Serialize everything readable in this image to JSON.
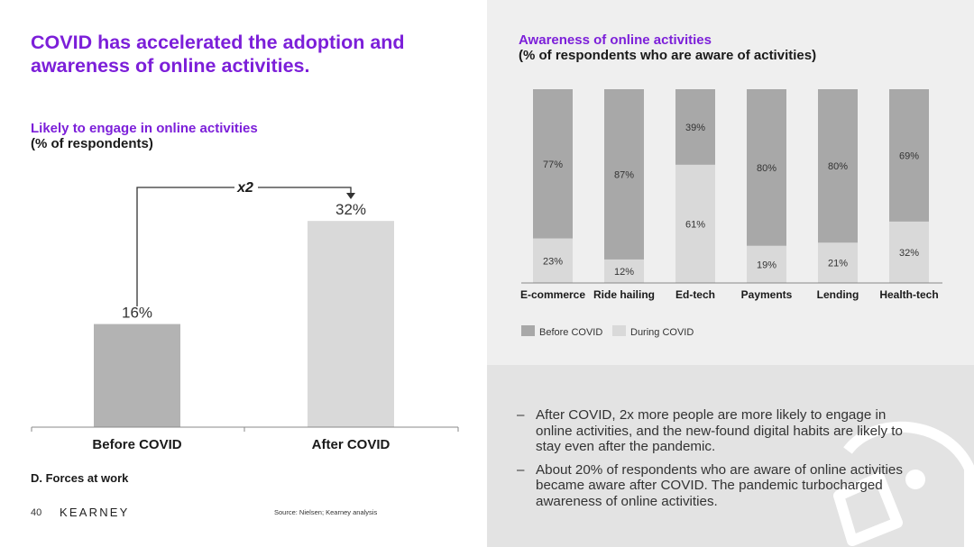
{
  "title": "COVID has accelerated the adoption and awareness of online activities.",
  "left_chart": {
    "subtitle": "Likely to engage in online activities",
    "subtitle2": "(% of respondents)",
    "multiplier": "x2"
  },
  "right_chart": {
    "subtitle": "Awareness of online activities",
    "subtitle2": "(% of respondents who are aware of activities)"
  },
  "chart_data": [
    {
      "type": "bar",
      "title": "Likely to engage in online activities",
      "ylabel": "% of respondents",
      "categories": [
        "Before COVID",
        "After COVID"
      ],
      "values": [
        16,
        32
      ],
      "value_labels": [
        "16%",
        "32%"
      ],
      "annotation": "x2",
      "ylim": [
        0,
        40
      ],
      "colors": [
        "#b3b3b3",
        "#d9d9d9"
      ]
    },
    {
      "type": "bar",
      "stacked": true,
      "title": "Awareness of online activities",
      "ylabel": "% of respondents who are aware of activities",
      "categories": [
        "E-commerce",
        "Ride hailing",
        "Ed-tech",
        "Payments",
        "Lending",
        "Health-tech"
      ],
      "series": [
        {
          "name": "During COVID",
          "values": [
            23,
            12,
            61,
            19,
            21,
            32
          ],
          "labels": [
            "23%",
            "12%",
            "61%",
            "19%",
            "21%",
            "32%"
          ],
          "color": "#d9d9d9"
        },
        {
          "name": "Before COVID",
          "values": [
            77,
            87,
            39,
            80,
            80,
            69
          ],
          "labels": [
            "77%",
            "87%",
            "39%",
            "80%",
            "80%",
            "69%"
          ],
          "color": "#a8a8a8"
        }
      ],
      "ylim": [
        0,
        100
      ],
      "legend": [
        "Before COVID",
        "During COVID"
      ],
      "legend_position": "bottom-left"
    }
  ],
  "bullets": [
    "After COVID, 2x more people are more likely to engage in online activities, and the new-found digital habits are likely to stay even after the pandemic.",
    "About 20% of respondents who are aware of online activities became aware after COVID. The pandemic turbocharged awareness of online activities."
  ],
  "bullet_dash": "–",
  "footer": {
    "section": "D. Forces at work",
    "page": "40",
    "brand": "KEARNEY",
    "source": "Source: Nielsen; Kearney analysis"
  },
  "colors": {
    "accent": "#7c1fd9",
    "bar_dark": "#a8a8a8",
    "bar_light": "#d9d9d9"
  }
}
